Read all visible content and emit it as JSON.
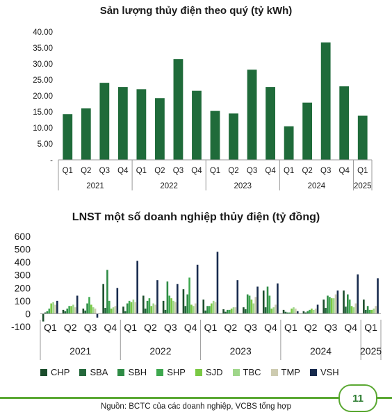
{
  "footer": {
    "source": "Nguồn: BCTC của các doanh nghiệp, VCBS tổng hợp",
    "page_number": "11"
  },
  "colors": {
    "accent": "#5aa832",
    "bar": "#1f6b3a"
  },
  "chart_data": [
    {
      "type": "bar",
      "title": "Sản lượng thủy điện theo quý (tỷ kWh)",
      "quarters": [
        "Q1",
        "Q2",
        "Q3",
        "Q4",
        "Q1",
        "Q2",
        "Q3",
        "Q4",
        "Q1",
        "Q2",
        "Q3",
        "Q4",
        "Q1",
        "Q2",
        "Q3",
        "Q4",
        "Q1"
      ],
      "years": [
        {
          "label": "2021",
          "span": 4
        },
        {
          "label": "2022",
          "span": 4
        },
        {
          "label": "2023",
          "span": 4
        },
        {
          "label": "2024",
          "span": 4
        },
        {
          "label": "2025",
          "span": 1
        }
      ],
      "values": [
        14.3,
        16.1,
        24.1,
        22.8,
        22.1,
        19.3,
        31.5,
        21.6,
        15.3,
        14.5,
        28.2,
        22.8,
        10.5,
        17.9,
        36.7,
        23.0,
        13.8
      ],
      "yticks": [
        "-",
        "5.00",
        "10.00",
        "15.00",
        "20.00",
        "25.00",
        "30.00",
        "35.00",
        "40.00"
      ],
      "ylim": [
        0,
        40
      ],
      "grid": false
    },
    {
      "type": "bar",
      "title": "LNST một số doanh nghiệp thủy điện (tỷ đồng)",
      "quarters": [
        "Q1",
        "Q2",
        "Q3",
        "Q4",
        "Q1",
        "Q2",
        "Q3",
        "Q4",
        "Q1",
        "Q2",
        "Q3",
        "Q4",
        "Q1",
        "Q2",
        "Q3",
        "Q4",
        "Q1"
      ],
      "years": [
        {
          "label": "2021",
          "span": 4
        },
        {
          "label": "2022",
          "span": 4
        },
        {
          "label": "2023",
          "span": 4
        },
        {
          "label": "2024",
          "span": 4
        },
        {
          "label": "2025",
          "span": 1
        }
      ],
      "yticks": [
        "-100",
        "0",
        "100",
        "200",
        "300",
        "400",
        "500",
        "600"
      ],
      "ylim": [
        -100,
        600
      ],
      "legend_position": "bottom",
      "series": [
        {
          "name": "CHP",
          "color": "#1b4d2c",
          "values": [
            -60,
            30,
            40,
            230,
            55,
            140,
            100,
            190,
            110,
            35,
            50,
            180,
            30,
            20,
            110,
            180,
            110
          ]
        },
        {
          "name": "SBA",
          "color": "#24683b",
          "values": [
            10,
            20,
            25,
            45,
            20,
            40,
            30,
            60,
            25,
            15,
            35,
            50,
            15,
            10,
            45,
            55,
            30
          ]
        },
        {
          "name": "SBH",
          "color": "#2e8b45",
          "values": [
            20,
            40,
            80,
            340,
            80,
            100,
            250,
            150,
            60,
            30,
            150,
            210,
            10,
            20,
            140,
            150,
            60
          ]
        },
        {
          "name": "SHP",
          "color": "#3ea84f",
          "values": [
            40,
            60,
            130,
            100,
            100,
            120,
            140,
            280,
            60,
            30,
            140,
            140,
            10,
            30,
            130,
            110,
            30
          ]
        },
        {
          "name": "SJD",
          "color": "#7ac943",
          "values": [
            80,
            60,
            70,
            40,
            90,
            60,
            120,
            70,
            80,
            40,
            110,
            40,
            40,
            40,
            120,
            60,
            30
          ]
        },
        {
          "name": "TBC",
          "color": "#9fd68a",
          "values": [
            90,
            70,
            50,
            50,
            110,
            80,
            100,
            60,
            100,
            50,
            80,
            50,
            50,
            30,
            120,
            50,
            40
          ]
        },
        {
          "name": "TMP",
          "color": "#cdcbb0",
          "values": [
            70,
            50,
            40,
            60,
            90,
            70,
            90,
            80,
            90,
            50,
            130,
            70,
            40,
            40,
            150,
            80,
            60
          ]
        },
        {
          "name": "VSH",
          "color": "#172a4d",
          "values": [
            100,
            140,
            -30,
            200,
            410,
            260,
            230,
            380,
            480,
            260,
            210,
            235,
            20,
            70,
            180,
            305,
            275
          ]
        }
      ]
    }
  ]
}
